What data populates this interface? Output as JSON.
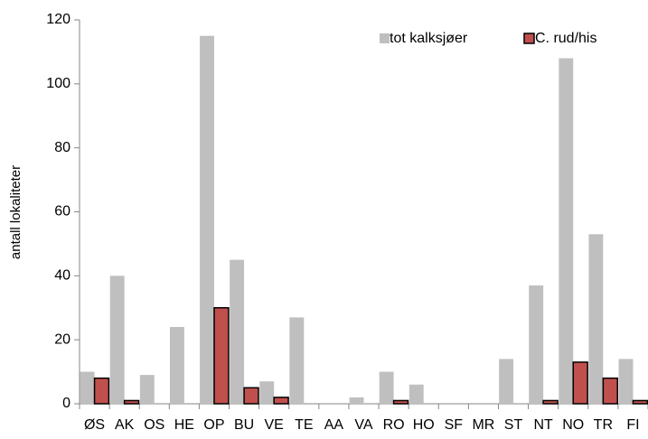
{
  "chart_data": {
    "type": "bar",
    "y_label": "antall lokaliteter",
    "categories": [
      "ØS",
      "AK",
      "OS",
      "HE",
      "OP",
      "BU",
      "VE",
      "TE",
      "AA",
      "VA",
      "RO",
      "HO",
      "SF",
      "MR",
      "ST",
      "NT",
      "NO",
      "TR",
      "FI"
    ],
    "series": [
      {
        "name": "tot kalksjøer",
        "color": "#bfbfbf",
        "values": [
          10,
          40,
          9,
          24,
          115,
          45,
          7,
          27,
          0,
          2,
          10,
          6,
          0,
          0,
          14,
          37,
          108,
          53,
          14
        ]
      },
      {
        "name": "C. rud/his",
        "color": "#c0504d",
        "values": [
          8,
          1,
          0,
          0,
          30,
          5,
          2,
          0,
          0,
          0,
          1,
          0,
          0,
          0,
          0,
          1,
          13,
          8,
          1
        ]
      }
    ],
    "ylim": [
      0,
      120
    ],
    "yticks": [
      0,
      20,
      40,
      60,
      80,
      100,
      120
    ],
    "legend": "top-right"
  }
}
